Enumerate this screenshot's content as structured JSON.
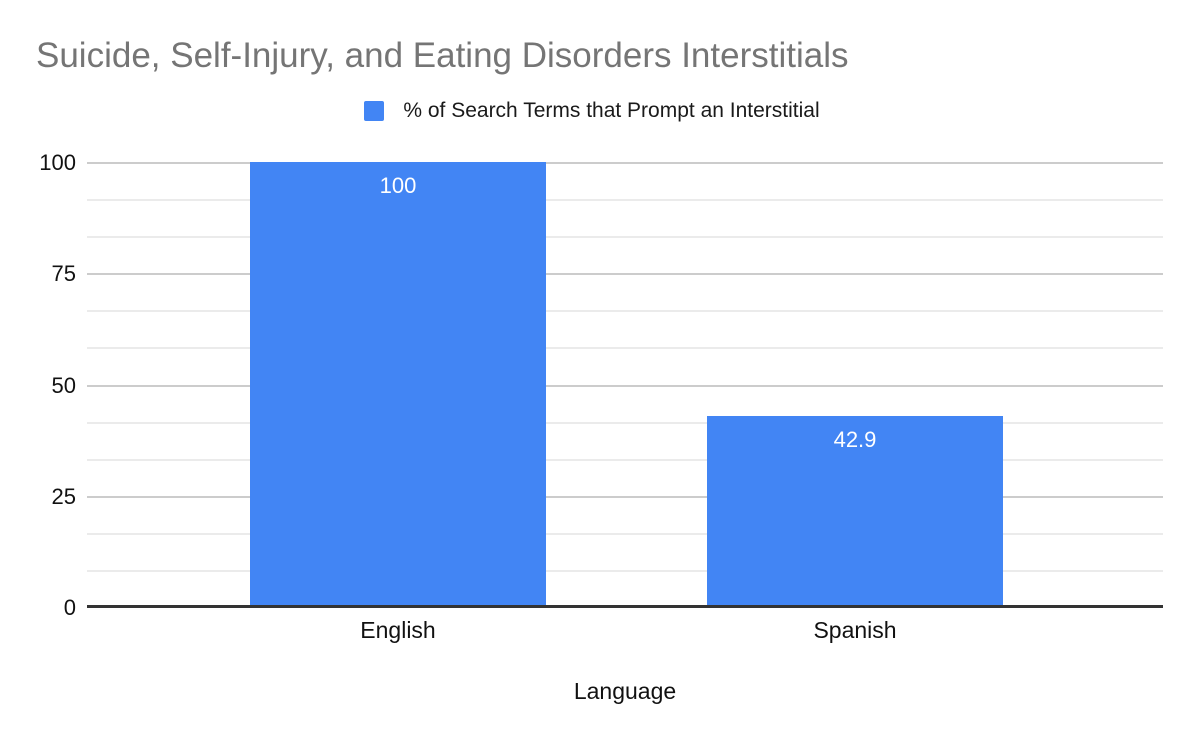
{
  "chart_data": {
    "type": "bar",
    "title": "Suicide, Self-Injury, and Eating Disorders Interstitials",
    "legend": [
      {
        "label": "% of Search Terms that Prompt an Interstitial",
        "color": "#4285f4"
      }
    ],
    "legend_position": "top-center",
    "categories": [
      "English",
      "Spanish"
    ],
    "series": [
      {
        "name": "% of Search Terms that Prompt an Interstitial",
        "values": [
          100,
          42.9
        ],
        "color": "#4285f4"
      }
    ],
    "value_labels": [
      "100",
      "42.9"
    ],
    "value_label_position": "inside-top",
    "xlabel": "Language",
    "ylabel": "",
    "ylim": [
      0,
      100
    ],
    "yticks": [
      0,
      25,
      50,
      75,
      100
    ],
    "minor_gridlines_per_interval": 2,
    "grid": true,
    "colors": {
      "bar": "#4285f4",
      "title": "#757575",
      "text": "#111111",
      "value_label": "#ffffff",
      "major_gridline": "#cccccc",
      "minor_gridline": "#ebebeb",
      "axis_line": "#333333",
      "background": "#ffffff"
    }
  }
}
